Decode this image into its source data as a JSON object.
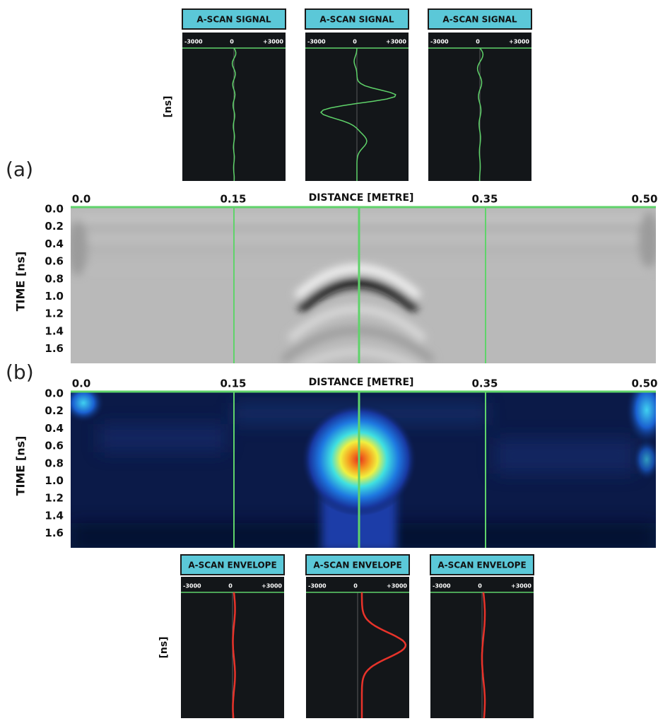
{
  "label_a": "(a)",
  "label_b": "(b)",
  "signal_panels": [
    {
      "title": "A-SCAN SIGNAL",
      "axis_left": "-3000",
      "axis_center": "0",
      "axis_right": "+3000"
    },
    {
      "title": "A-SCAN SIGNAL",
      "axis_left": "-3000",
      "axis_center": "0",
      "axis_right": "+3000"
    },
    {
      "title": "A-SCAN SIGNAL",
      "axis_left": "-3000",
      "axis_center": "0",
      "axis_right": "+3000"
    }
  ],
  "signal_y_label": "[ns]",
  "bscan": {
    "x_label": "DISTANCE [METRE]",
    "x_ticks": [
      "0.0",
      "0.15",
      "0.35",
      "0.50"
    ],
    "y_label": "TIME [ns]",
    "y_ticks": [
      "0.0",
      "0.2",
      "0.4",
      "0.6",
      "0.8",
      "1.0",
      "1.2",
      "1.4",
      "1.6"
    ]
  },
  "envelope_map": {
    "x_label": "DISTANCE [METRE]",
    "x_ticks": [
      "0.0",
      "0.15",
      "0.35",
      "0.50"
    ],
    "y_label": "TIME [ns]",
    "y_ticks": [
      "0.0",
      "0.2",
      "0.4",
      "0.6",
      "0.8",
      "1.0",
      "1.2",
      "1.4",
      "1.6"
    ]
  },
  "envelope_panels": [
    {
      "title": "A-SCAN ENVELOPE",
      "axis_left": "-3000",
      "axis_center": "0",
      "axis_right": "+3000"
    },
    {
      "title": "A-SCAN ENVELOPE",
      "axis_left": "-3000",
      "axis_center": "0",
      "axis_right": "+3000"
    },
    {
      "title": "A-SCAN ENVELOPE",
      "axis_left": "-3000",
      "axis_center": "0",
      "axis_right": "+3000"
    }
  ],
  "envelope_y_label": "[ns]"
}
